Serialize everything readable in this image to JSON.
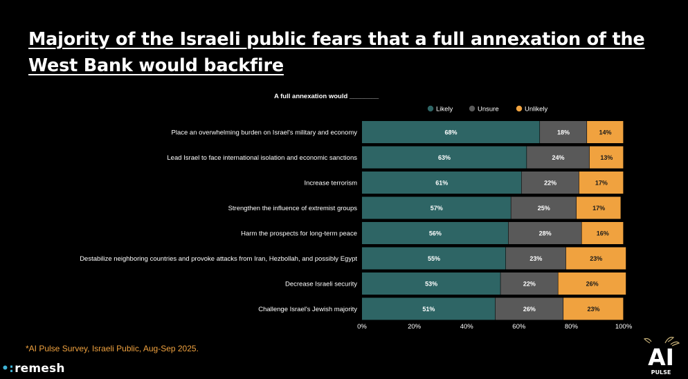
{
  "title": "Majority of the Israeli public fears that a full annexation of the West Bank would backfire",
  "footnote": "*AI Pulse Survey, Israeli Public, Aug-Sep 2025.",
  "brand": {
    "dots": "•:",
    "name": "remesh"
  },
  "ai_logo": {
    "big": "AI",
    "small": "PULSE"
  },
  "chart_data": {
    "type": "bar",
    "orientation": "horizontal-stacked",
    "subtitle": "A full annexation would ________",
    "categories": [
      "Place an overwhelming burden on Israel's military and economy",
      "Lead Israel to face international isolation and economic sanctions",
      "Increase terrorism",
      "Strengthen the influence of extremist groups",
      "Harm the prospects for long-term peace",
      "Destabilize neighboring countries and provoke attacks from Iran, Hezbollah, and possibly Egypt",
      "Decrease Israeli security",
      "Challenge Israel's Jewish majority"
    ],
    "series": [
      {
        "name": "Likely",
        "color": "#2e6565",
        "values": [
          68,
          63,
          61,
          57,
          56,
          55,
          53,
          51
        ]
      },
      {
        "name": "Unsure",
        "color": "#595959",
        "values": [
          18,
          24,
          22,
          25,
          28,
          23,
          22,
          26
        ]
      },
      {
        "name": "Unlikely",
        "color": "#f0a23f",
        "values": [
          14,
          13,
          17,
          17,
          16,
          23,
          26,
          23
        ]
      }
    ],
    "value_suffix": "%",
    "xlim": [
      0,
      100
    ],
    "xticks": [
      "0%",
      "20%",
      "40%",
      "60%",
      "80%",
      "100%"
    ],
    "legend_position": "top-right",
    "grid": false
  }
}
